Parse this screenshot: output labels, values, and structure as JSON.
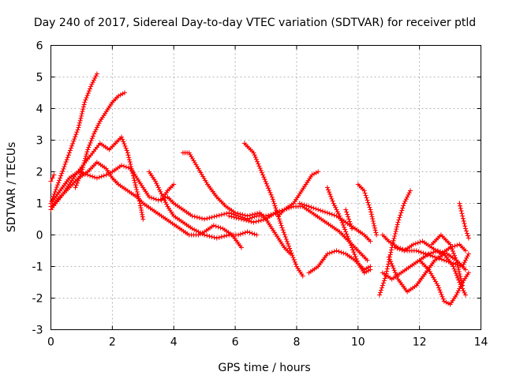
{
  "chart_data": {
    "type": "scatter",
    "title": "Day 240 of 2017, Sidereal Day-to-day VTEC variation (SDTVAR) for receiver ptld",
    "xlabel": "GPS time / hours",
    "ylabel": "SDTVAR / TECUs",
    "xlim": [
      0,
      14
    ],
    "ylim": [
      -3,
      6
    ],
    "x_ticks": [
      "0",
      "2",
      "4",
      "6",
      "8",
      "10",
      "12",
      "14"
    ],
    "y_ticks": [
      "-3",
      "-2",
      "-1",
      "0",
      "1",
      "2",
      "3",
      "4",
      "5",
      "6"
    ],
    "grid": true,
    "marker": "+",
    "color": "#ff0000",
    "series": [
      {
        "name": "s1",
        "x": [
          0.0,
          0.3,
          0.6,
          0.9,
          1.1,
          1.3,
          1.5
        ],
        "y": [
          1.0,
          1.8,
          2.6,
          3.4,
          4.2,
          4.7,
          5.1
        ]
      },
      {
        "name": "s2",
        "x": [
          0.0,
          0.05,
          0.1
        ],
        "y": [
          1.7,
          1.8,
          1.9
        ]
      },
      {
        "name": "s3",
        "x": [
          0.0,
          0.4,
          0.8,
          1.2,
          1.6,
          1.9,
          2.1,
          2.3,
          2.5,
          2.7,
          2.9,
          3.0
        ],
        "y": [
          0.8,
          1.3,
          1.9,
          2.4,
          2.9,
          2.7,
          2.9,
          3.1,
          2.6,
          1.8,
          1.0,
          0.5
        ]
      },
      {
        "name": "s4",
        "x": [
          0.8,
          1.0,
          1.2,
          1.4,
          1.6,
          1.8,
          2.0,
          2.2,
          2.4
        ],
        "y": [
          1.5,
          2.0,
          2.7,
          3.2,
          3.6,
          3.9,
          4.2,
          4.4,
          4.5
        ]
      },
      {
        "name": "s5",
        "x": [
          0.0,
          0.3,
          0.6,
          0.9,
          1.2,
          1.5,
          1.8,
          2.0,
          2.3,
          2.6,
          2.8,
          3.0,
          3.2,
          3.5,
          3.8,
          4.0,
          4.3,
          4.6,
          5.0,
          5.4,
          5.8,
          6.1,
          6.4,
          6.7,
          7.0,
          7.4
        ],
        "y": [
          1.0,
          1.4,
          1.8,
          2.0,
          1.9,
          1.8,
          1.9,
          2.0,
          2.2,
          2.1,
          1.8,
          1.5,
          1.2,
          1.1,
          1.2,
          1.0,
          0.8,
          0.6,
          0.5,
          0.6,
          0.7,
          0.6,
          0.5,
          0.6,
          0.6,
          0.7
        ]
      },
      {
        "name": "s6",
        "x": [
          0.0,
          0.3,
          0.6,
          0.9,
          1.2,
          1.5,
          1.8,
          2.0,
          2.2,
          2.5,
          2.8,
          3.0,
          3.3,
          3.6,
          3.9,
          4.2,
          4.5,
          4.8,
          5.0,
          5.3,
          5.6,
          5.9,
          6.2
        ],
        "y": [
          0.9,
          1.2,
          1.5,
          1.8,
          2.0,
          2.3,
          2.1,
          1.8,
          1.6,
          1.4,
          1.2,
          1.0,
          0.8,
          0.6,
          0.4,
          0.2,
          0.0,
          0.0,
          0.1,
          0.3,
          0.2,
          0.0,
          -0.4
        ]
      },
      {
        "name": "s7",
        "x": [
          3.2,
          3.4,
          3.6,
          3.8,
          4.0,
          4.3,
          4.6,
          5.0,
          5.4,
          5.8,
          6.1,
          6.4,
          6.7
        ],
        "y": [
          2.0,
          1.7,
          1.3,
          0.9,
          0.6,
          0.4,
          0.2,
          0.0,
          -0.1,
          0.0,
          0.0,
          0.1,
          0.0
        ]
      },
      {
        "name": "s8",
        "x": [
          3.6,
          3.8,
          4.0
        ],
        "y": [
          1.1,
          1.4,
          1.6
        ]
      },
      {
        "name": "s9",
        "x": [
          4.3,
          4.5,
          4.8,
          5.1,
          5.4,
          5.7,
          6.0,
          6.4,
          6.8,
          7.0,
          7.2,
          7.4,
          7.6,
          7.8
        ],
        "y": [
          2.6,
          2.6,
          2.1,
          1.6,
          1.2,
          0.9,
          0.7,
          0.6,
          0.7,
          0.5,
          0.2,
          -0.1,
          -0.4,
          -0.6
        ]
      },
      {
        "name": "s10",
        "x": [
          6.3,
          6.6,
          6.9,
          7.2,
          7.5,
          7.8,
          8.0,
          8.2
        ],
        "y": [
          2.9,
          2.6,
          1.9,
          1.2,
          0.3,
          -0.5,
          -1.0,
          -1.3
        ]
      },
      {
        "name": "s11",
        "x": [
          5.8,
          6.2,
          6.6,
          7.0,
          7.3,
          7.6,
          7.9,
          8.2,
          8.5,
          8.8,
          9.1,
          9.4,
          9.7,
          10.0,
          10.3
        ],
        "y": [
          0.6,
          0.5,
          0.4,
          0.5,
          0.7,
          0.8,
          0.9,
          0.9,
          0.7,
          0.5,
          0.3,
          0.1,
          -0.2,
          -0.5,
          -0.8
        ]
      },
      {
        "name": "s12",
        "x": [
          7.4,
          7.6,
          7.9,
          8.1,
          8.3,
          8.5,
          8.7
        ],
        "y": [
          0.6,
          0.8,
          1.0,
          1.3,
          1.6,
          1.9,
          2.0
        ]
      },
      {
        "name": "s13",
        "x": [
          8.1,
          8.4,
          8.7,
          9.0,
          9.3,
          9.6,
          9.9,
          10.2,
          10.4
        ],
        "y": [
          1.0,
          0.9,
          0.8,
          0.7,
          0.6,
          0.4,
          0.2,
          0.0,
          -0.2
        ]
      },
      {
        "name": "s14",
        "x": [
          8.4,
          8.7,
          9.0,
          9.3,
          9.6,
          9.9,
          10.2,
          10.4
        ],
        "y": [
          -1.2,
          -1.0,
          -0.6,
          -0.5,
          -0.6,
          -0.8,
          -1.1,
          -1.0
        ]
      },
      {
        "name": "s15",
        "x": [
          9.0,
          9.2,
          9.4,
          9.6,
          9.8,
          10.0,
          10.2,
          10.4
        ],
        "y": [
          1.5,
          1.0,
          0.6,
          0.1,
          -0.4,
          -0.9,
          -1.2,
          -1.1
        ]
      },
      {
        "name": "s16",
        "x": [
          9.6,
          9.7,
          9.8
        ],
        "y": [
          0.8,
          0.5,
          0.2
        ]
      },
      {
        "name": "s17",
        "x": [
          10.0,
          10.2,
          10.4,
          10.6
        ],
        "y": [
          1.6,
          1.4,
          0.8,
          0.0
        ]
      },
      {
        "name": "s18",
        "x": [
          10.7,
          10.9,
          11.1,
          11.3,
          11.5,
          11.7
        ],
        "y": [
          -1.9,
          -1.3,
          -0.4,
          0.4,
          1.0,
          1.4
        ]
      },
      {
        "name": "s19",
        "x": [
          10.8,
          11.0,
          11.3,
          11.6,
          11.9,
          12.2,
          12.5,
          12.8,
          13.1,
          13.4,
          13.6
        ],
        "y": [
          0.0,
          -0.2,
          -0.4,
          -0.5,
          -0.5,
          -0.6,
          -0.7,
          -0.8,
          -0.9,
          -1.0,
          -0.6
        ]
      },
      {
        "name": "s20",
        "x": [
          10.8,
          11.1,
          11.4,
          11.7,
          12.0,
          12.3,
          12.6,
          12.9,
          13.2,
          13.5
        ],
        "y": [
          -1.2,
          -1.4,
          -1.2,
          -1.0,
          -0.8,
          -0.6,
          -0.5,
          -0.6,
          -0.8,
          -1.1
        ]
      },
      {
        "name": "s21",
        "x": [
          11.0,
          11.3,
          11.6,
          11.9,
          12.2,
          12.5,
          12.8,
          13.1,
          13.3,
          13.5
        ],
        "y": [
          -0.7,
          -1.4,
          -1.8,
          -1.6,
          -1.2,
          -0.8,
          -0.6,
          -1.0,
          -1.5,
          -1.9
        ]
      },
      {
        "name": "s22",
        "x": [
          11.2,
          11.5,
          11.8,
          12.1,
          12.4,
          12.7,
          13.0,
          13.3,
          13.5
        ],
        "y": [
          -0.4,
          -0.5,
          -0.3,
          -0.2,
          -0.4,
          -0.6,
          -0.4,
          -0.3,
          -0.5
        ]
      },
      {
        "name": "s23",
        "x": [
          12.0,
          12.3,
          12.6,
          12.8,
          13.0,
          13.2,
          13.4,
          13.6
        ],
        "y": [
          -0.8,
          -1.1,
          -1.6,
          -2.1,
          -2.2,
          -1.9,
          -1.5,
          -1.2
        ]
      },
      {
        "name": "s24",
        "x": [
          12.4,
          12.7,
          13.0,
          13.2,
          13.4
        ],
        "y": [
          -0.3,
          0.0,
          -0.3,
          -0.8,
          -1.6
        ]
      },
      {
        "name": "s25",
        "x": [
          13.3,
          13.4,
          13.5,
          13.6
        ],
        "y": [
          1.0,
          0.6,
          0.2,
          -0.1
        ]
      }
    ]
  }
}
